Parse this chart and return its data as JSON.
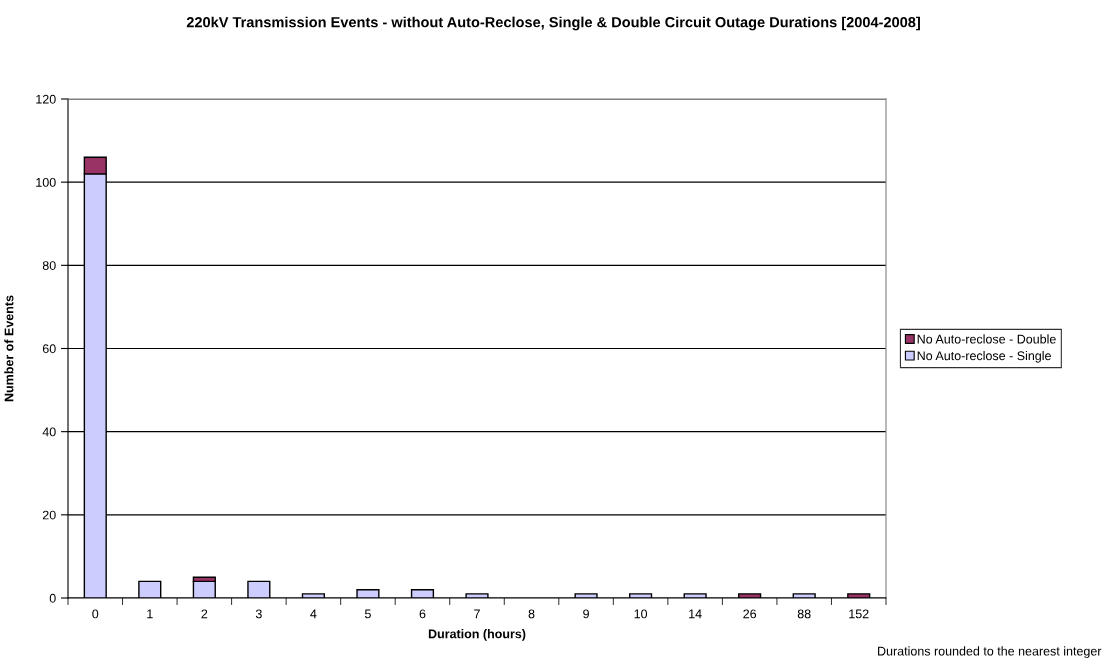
{
  "chart_data": {
    "type": "bar",
    "title": "220kV Transmission Events - without Auto-Reclose, Single & Double Circuit Outage Durations [2004-2008]",
    "xlabel": "Duration (hours)",
    "ylabel": "Number of Events",
    "categories": [
      "0",
      "1",
      "2",
      "3",
      "4",
      "5",
      "6",
      "7",
      "8",
      "9",
      "10",
      "14",
      "26",
      "88",
      "152"
    ],
    "series": [
      {
        "name": "No Auto-reclose - Single",
        "color": "#ccccff",
        "values": [
          102,
          4,
          4,
          4,
          1,
          2,
          2,
          1,
          0,
          1,
          1,
          1,
          0,
          1,
          0
        ]
      },
      {
        "name": "No Auto-reclose - Double",
        "color": "#993366",
        "values": [
          4,
          0,
          1,
          0,
          0,
          0,
          0,
          0,
          0,
          0,
          0,
          0,
          1,
          0,
          1
        ]
      }
    ],
    "stacked": true,
    "ylim": [
      0,
      120
    ],
    "yticks": [
      0,
      20,
      40,
      60,
      80,
      100,
      120
    ],
    "grid": "y",
    "legend": "right",
    "annotations": [
      "Durations rounded to the nearest integer"
    ]
  }
}
